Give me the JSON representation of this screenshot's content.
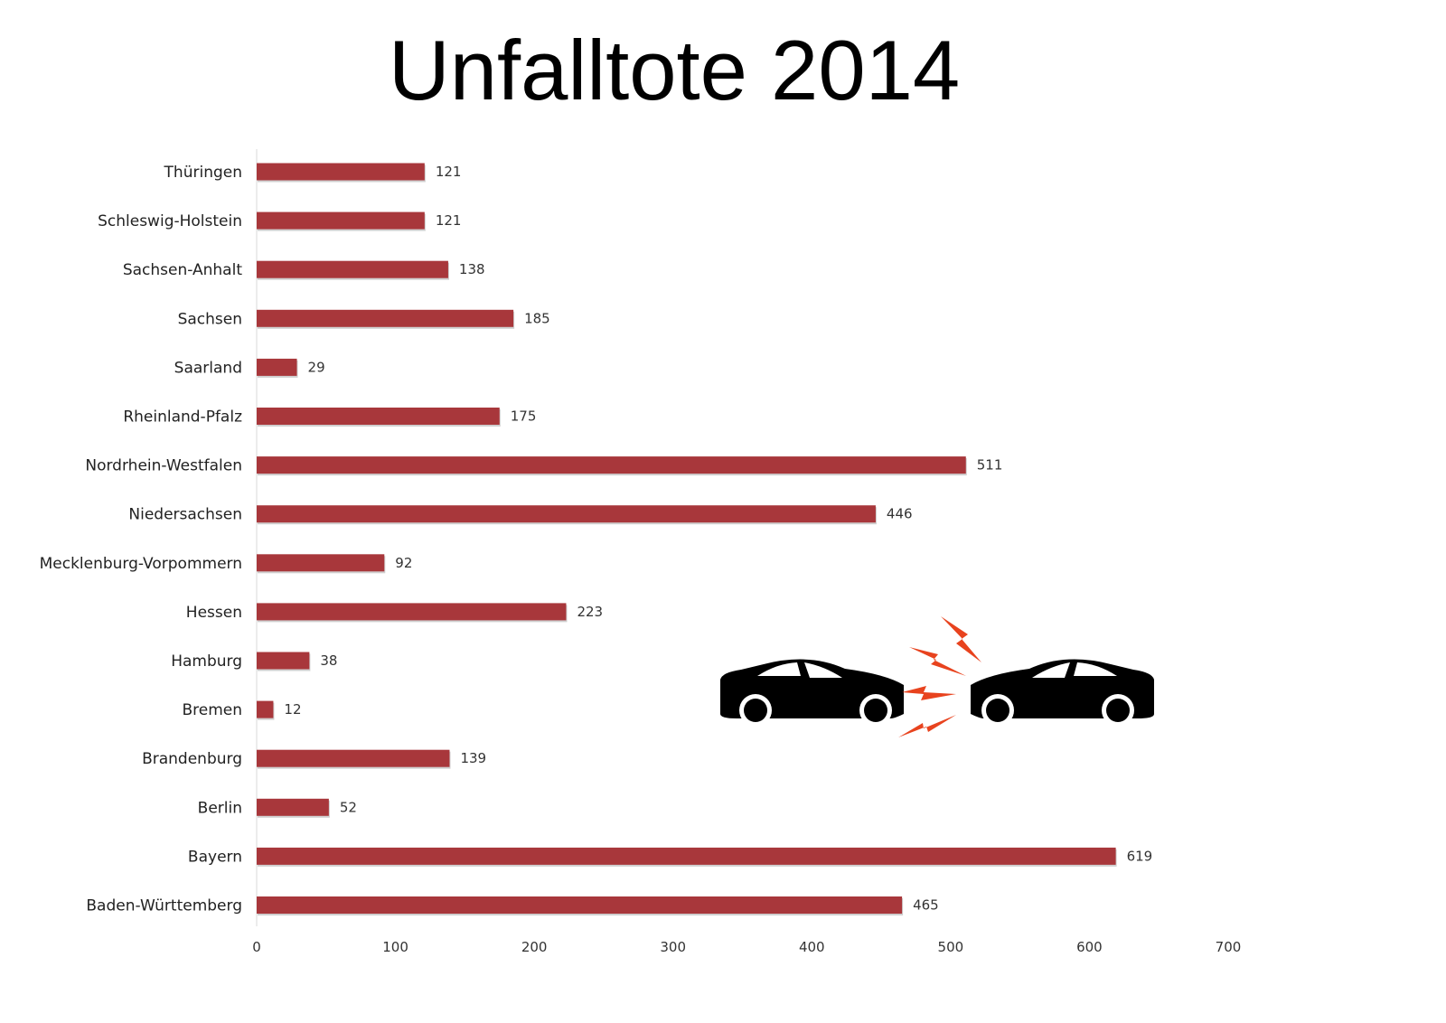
{
  "chart_data": {
    "type": "bar",
    "orientation": "horizontal",
    "title": "Unfalltote 2014",
    "categories": [
      "Thüringen",
      "Schleswig-Holstein",
      "Sachsen-Anhalt",
      "Sachsen",
      "Saarland",
      "Rheinland-Pfalz",
      "Nordrhein-Westfalen",
      "Niedersachsen",
      "Mecklenburg-Vorpommern",
      "Hessen",
      "Hamburg",
      "Bremen",
      "Brandenburg",
      "Berlin",
      "Bayern",
      "Baden-Württemberg"
    ],
    "values": [
      121,
      121,
      138,
      185,
      29,
      175,
      511,
      446,
      92,
      223,
      38,
      12,
      139,
      52,
      619,
      465
    ],
    "xlim": [
      0,
      700
    ],
    "xticks": [
      "0",
      "100",
      "200",
      "300",
      "400",
      "500",
      "600",
      "700"
    ],
    "grid": false,
    "bar_color": "#a8373b",
    "illustration": "car-crash-icon",
    "illustration_colors": {
      "cars": "#000000",
      "sparks": "#e8431e"
    }
  }
}
